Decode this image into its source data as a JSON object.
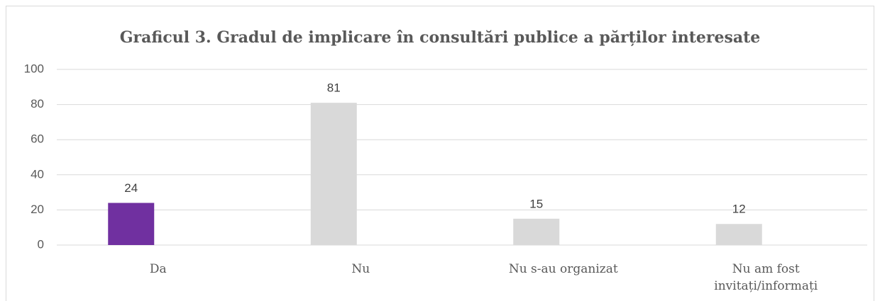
{
  "chart_data": {
    "type": "bar",
    "title": "Graficul 3. Gradul de implicare în consultări publice a părților interesate",
    "categories": [
      "Da",
      "Nu",
      "Nu s-au organizat",
      "Nu am fost invitați/informați"
    ],
    "values": [
      24,
      81,
      15,
      12
    ],
    "colors": [
      "#7030a0",
      "#d9d9d9",
      "#d9d9d9",
      "#d9d9d9"
    ],
    "ylim": [
      0,
      100
    ],
    "yticks": [
      0,
      20,
      40,
      60,
      80,
      100
    ],
    "grid": true
  }
}
